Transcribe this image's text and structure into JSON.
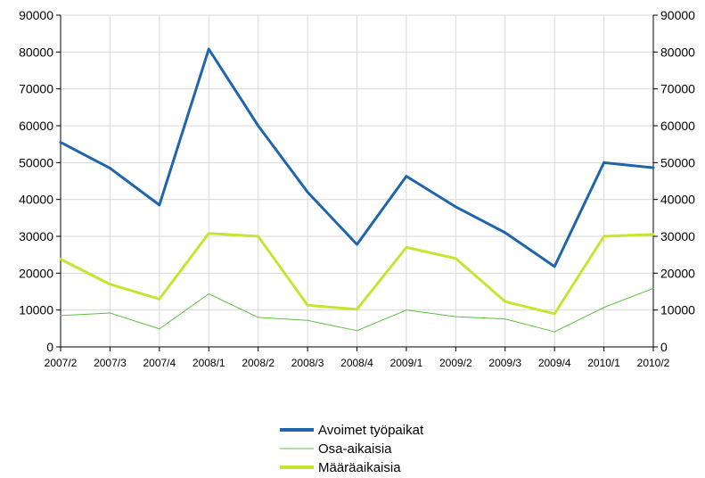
{
  "chart_data": {
    "type": "line",
    "title": "",
    "xlabel": "",
    "ylabel": "",
    "categories": [
      "2007/2",
      "2007/3",
      "2007/4",
      "2008/1",
      "2008/2",
      "2008/3",
      "2008/4",
      "2009/1",
      "2009/2",
      "2009/3",
      "2009/4",
      "2010/1",
      "2010/2"
    ],
    "ylim": [
      0,
      90000
    ],
    "yticks": [
      0,
      10000,
      20000,
      30000,
      40000,
      50000,
      60000,
      70000,
      80000,
      90000
    ],
    "grid": true,
    "secondary_y_axis": true,
    "legend_position": "bottom-center",
    "series": [
      {
        "name": "Avoimet työpaikat",
        "color": "#1f65ad",
        "values": [
          55500,
          48500,
          38500,
          80800,
          60000,
          42000,
          27800,
          46300,
          38000,
          31000,
          21800,
          50000,
          48600
        ]
      },
      {
        "name": "Osa-aikaisia",
        "color": "#5bc040",
        "values": [
          8500,
          9200,
          4900,
          14400,
          8000,
          7200,
          4400,
          10000,
          8200,
          7600,
          4100,
          10700,
          15900
        ]
      },
      {
        "name": "Määräaikaisia",
        "color": "#c8e432",
        "values": [
          23800,
          17000,
          13000,
          30800,
          30000,
          11300,
          10200,
          27000,
          24000,
          12300,
          9000,
          30000,
          30500
        ]
      }
    ]
  }
}
